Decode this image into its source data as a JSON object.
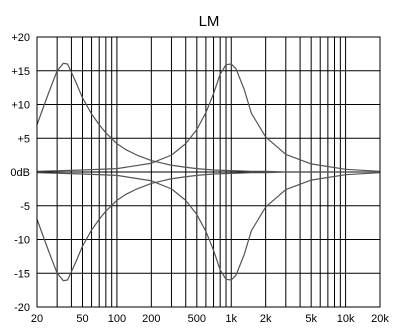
{
  "chart_data": {
    "type": "line",
    "title": "LM",
    "xlabel": "",
    "ylabel": "",
    "x_scale": "log",
    "xlim": [
      20,
      20000
    ],
    "ylim": [
      -20,
      20
    ],
    "grid": true,
    "x_major_ticks": [
      20,
      50,
      100,
      200,
      500,
      1000,
      2000,
      5000,
      10000,
      20000
    ],
    "x_minor_gridlines": [
      30,
      40,
      60,
      70,
      80,
      90,
      300,
      400,
      600,
      700,
      800,
      900,
      3000,
      4000,
      6000,
      7000,
      8000,
      9000
    ],
    "x_tick_labels": [
      "20",
      "50",
      "100",
      "200",
      "500",
      "1k",
      "2k",
      "5k",
      "10k",
      "20k"
    ],
    "y_ticks": [
      20,
      15,
      10,
      5,
      0,
      -5,
      -10,
      -15,
      -20
    ],
    "y_tick_labels": [
      "+20",
      "+15",
      "+10",
      "+5",
      "0dB",
      "-5",
      "-10",
      "-15",
      "-20"
    ],
    "line_color": "#555555",
    "series": [
      {
        "x": [
          20,
          25,
          30,
          34,
          37,
          42,
          50,
          60,
          70,
          80,
          100,
          120,
          150,
          200,
          250,
          300,
          400,
          500,
          700,
          1000,
          1500,
          2000,
          3000,
          5000,
          10000,
          20000
        ],
        "y": [
          7,
          11.5,
          15,
          16.1,
          16,
          14,
          11,
          8.6,
          7,
          5.8,
          4.2,
          3.3,
          2.5,
          1.7,
          1.3,
          1,
          0.7,
          0.5,
          0.3,
          0.2,
          0.1,
          0.1,
          0,
          0,
          0,
          0
        ]
      },
      {
        "x": [
          20,
          25,
          30,
          34,
          37,
          42,
          50,
          60,
          70,
          80,
          100,
          120,
          150,
          200,
          250,
          300,
          400,
          500,
          700,
          1000,
          1500,
          2000,
          3000,
          5000,
          10000,
          20000
        ],
        "y": [
          -7,
          -11.5,
          -15,
          -16.1,
          -16,
          -14,
          -11,
          -8.6,
          -7,
          -5.8,
          -4.2,
          -3.3,
          -2.5,
          -1.7,
          -1.3,
          -1,
          -0.7,
          -0.5,
          -0.3,
          -0.2,
          -0.1,
          -0.1,
          0,
          0,
          0,
          0
        ]
      },
      {
        "x": [
          20,
          50,
          100,
          200,
          300,
          400,
          500,
          600,
          700,
          800,
          900,
          1000,
          1100,
          1300,
          1500,
          2000,
          3000,
          5000,
          10000,
          20000
        ],
        "y": [
          0.1,
          0.3,
          0.5,
          1.3,
          2.5,
          4.2,
          6.3,
          8.8,
          11.6,
          14.5,
          15.9,
          16,
          15.3,
          12.2,
          8.7,
          5.2,
          2.6,
          1.2,
          0.4,
          0.1
        ]
      },
      {
        "x": [
          20,
          50,
          100,
          200,
          300,
          400,
          500,
          600,
          700,
          800,
          900,
          1000,
          1100,
          1300,
          1500,
          2000,
          3000,
          5000,
          10000,
          20000
        ],
        "y": [
          -0.1,
          -0.3,
          -0.5,
          -1.3,
          -2.5,
          -4.2,
          -6.3,
          -8.8,
          -11.6,
          -14.5,
          -15.9,
          -16,
          -15.3,
          -12.2,
          -8.7,
          -5.2,
          -2.6,
          -1.2,
          -0.4,
          -0.1
        ]
      }
    ]
  }
}
